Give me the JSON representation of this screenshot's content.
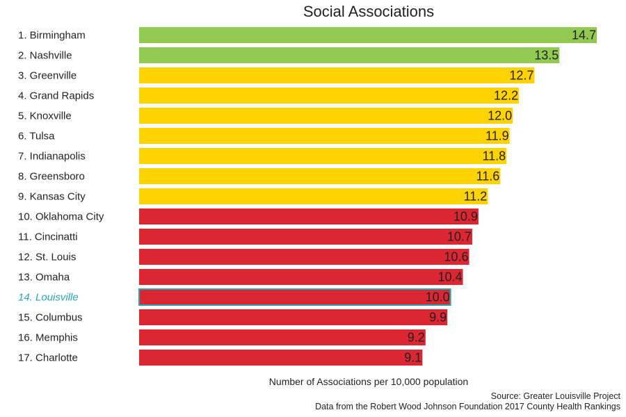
{
  "chart_data": {
    "type": "bar",
    "orientation": "horizontal",
    "title": "Social Associations",
    "xlabel": "Number of Associations per 10,000 population",
    "categories": [
      "1. Birmingham",
      "2. Nashville",
      "3. Greenville",
      "4. Grand Rapids",
      "5. Knoxville",
      "6. Tulsa",
      "7. Indianapolis",
      "8. Greensboro",
      "9. Kansas City",
      "10. Oklahoma City",
      "11. Cincinatti",
      "12. St. Louis",
      "13. Omaha",
      "14. Louisville",
      "15. Columbus",
      "16. Memphis",
      "17. Charlotte"
    ],
    "values": [
      14.7,
      13.5,
      12.7,
      12.2,
      12.0,
      11.9,
      11.8,
      11.6,
      11.2,
      10.9,
      10.7,
      10.6,
      10.4,
      10.0,
      9.9,
      9.2,
      9.1
    ],
    "value_labels": [
      "14.7",
      "13.5",
      "12.7",
      "12.2",
      "12.0",
      "11.9",
      "11.8",
      "11.6",
      "11.2",
      "10.9",
      "10.7",
      "10.6",
      "10.4",
      "10.0",
      "9.9",
      "9.2",
      "9.1"
    ],
    "bar_colors": [
      "#92c950",
      "#92c950",
      "#ffd300",
      "#ffd300",
      "#ffd300",
      "#ffd300",
      "#ffd300",
      "#ffd300",
      "#ffd300",
      "#dc2632",
      "#dc2632",
      "#dc2632",
      "#dc2632",
      "#dc2632",
      "#dc2632",
      "#dc2632",
      "#dc2632"
    ],
    "highlight_index": 13,
    "highlight_color": "#2aa6b3",
    "xlim": [
      0,
      14.7
    ],
    "grid": false,
    "source_lines": [
      "Source: Greater Louisville Project",
      "Data from the Robert Wood Johnson Foundation 2017 County Health Rankings"
    ]
  }
}
